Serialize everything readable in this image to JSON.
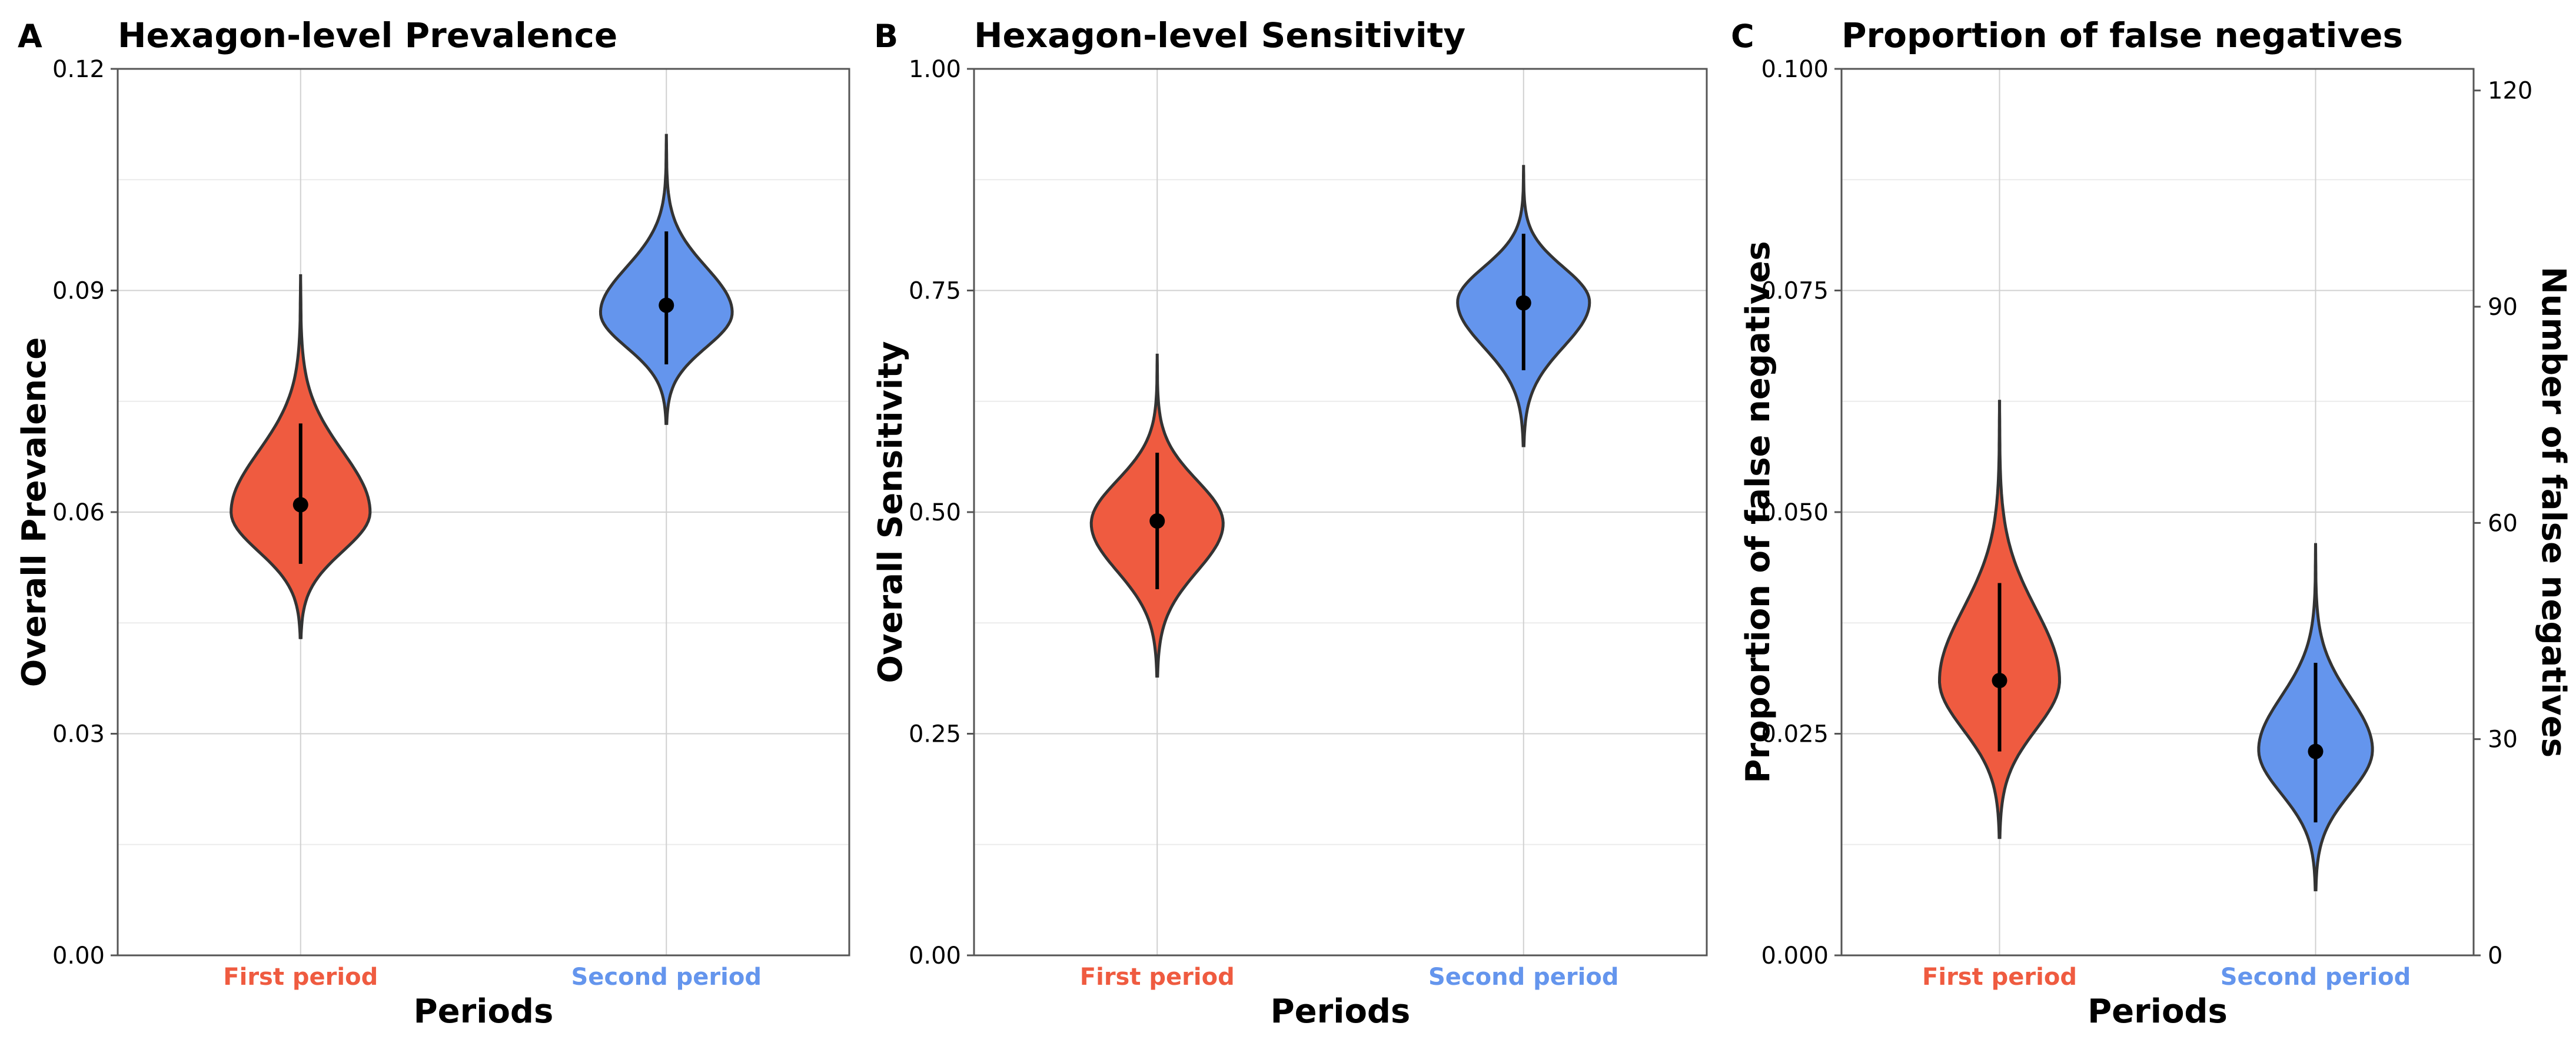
{
  "chart_data": [
    {
      "type": "violin",
      "panel_label": "A",
      "title": "Hexagon-level Prevalence",
      "xlabel": "Periods",
      "ylabel": "Overall Prevalence",
      "ylim": [
        0,
        0.12
      ],
      "yticks": [
        0.0,
        0.03,
        0.06,
        0.09,
        0.12
      ],
      "ytick_labels": [
        "0.00",
        "0.03",
        "0.06",
        "0.09",
        "0.12"
      ],
      "categories": [
        "First period",
        "Second period"
      ],
      "colors": [
        "#EF5B40",
        "#6495ED"
      ],
      "series": [
        {
          "name": "First period",
          "median": 0.061,
          "interval": [
            0.053,
            0.072
          ],
          "min": 0.043,
          "max": 0.092,
          "mode": 0.06,
          "max_halfwidth": 0.095
        },
        {
          "name": "Second period",
          "median": 0.088,
          "interval": [
            0.08,
            0.098
          ],
          "min": 0.072,
          "max": 0.111,
          "mode": 0.087,
          "max_halfwidth": 0.09
        }
      ]
    },
    {
      "type": "violin",
      "panel_label": "B",
      "title": "Hexagon-level Sensitivity",
      "xlabel": "Periods",
      "ylabel": "Overall Sensitivity",
      "ylim": [
        0,
        1.0
      ],
      "yticks": [
        0.0,
        0.25,
        0.5,
        0.75,
        1.0
      ],
      "ytick_labels": [
        "0.00",
        "0.25",
        "0.50",
        "0.75",
        "1.00"
      ],
      "categories": [
        "First period",
        "Second period"
      ],
      "colors": [
        "#EF5B40",
        "#6495ED"
      ],
      "series": [
        {
          "name": "First period",
          "median": 0.49,
          "interval": [
            0.413,
            0.567
          ],
          "min": 0.315,
          "max": 0.677,
          "mode": 0.487,
          "max_halfwidth": 0.09
        },
        {
          "name": "Second period",
          "median": 0.736,
          "interval": [
            0.66,
            0.814
          ],
          "min": 0.575,
          "max": 0.89,
          "mode": 0.737,
          "max_halfwidth": 0.09
        }
      ]
    },
    {
      "type": "violin",
      "panel_label": "C",
      "title": "Proportion of false negatives",
      "xlabel": "Periods",
      "ylabel": "Proportion of false negatives",
      "ylabel_right": "Number of false negatives",
      "ylim": [
        0,
        0.1
      ],
      "yticks": [
        0.0,
        0.025,
        0.05,
        0.075,
        0.1
      ],
      "ytick_labels": [
        "0.000",
        "0.025",
        "0.050",
        "0.075",
        "0.100"
      ],
      "ylim_right": [
        0,
        123
      ],
      "yticks_right": [
        0,
        30,
        60,
        90,
        120
      ],
      "ytick_labels_right": [
        "0",
        "30",
        "60",
        "90",
        "120"
      ],
      "categories": [
        "First period",
        "Second period"
      ],
      "colors": [
        "#EF5B40",
        "#6495ED"
      ],
      "series": [
        {
          "name": "First period",
          "median": 0.031,
          "interval": [
            0.023,
            0.042
          ],
          "min": 0.0133,
          "max": 0.0625,
          "mode": 0.031,
          "max_halfwidth": 0.095
        },
        {
          "name": "Second period",
          "median": 0.023,
          "interval": [
            0.015,
            0.033
          ],
          "min": 0.0074,
          "max": 0.0465,
          "mode": 0.0232,
          "max_halfwidth": 0.09
        }
      ]
    }
  ]
}
